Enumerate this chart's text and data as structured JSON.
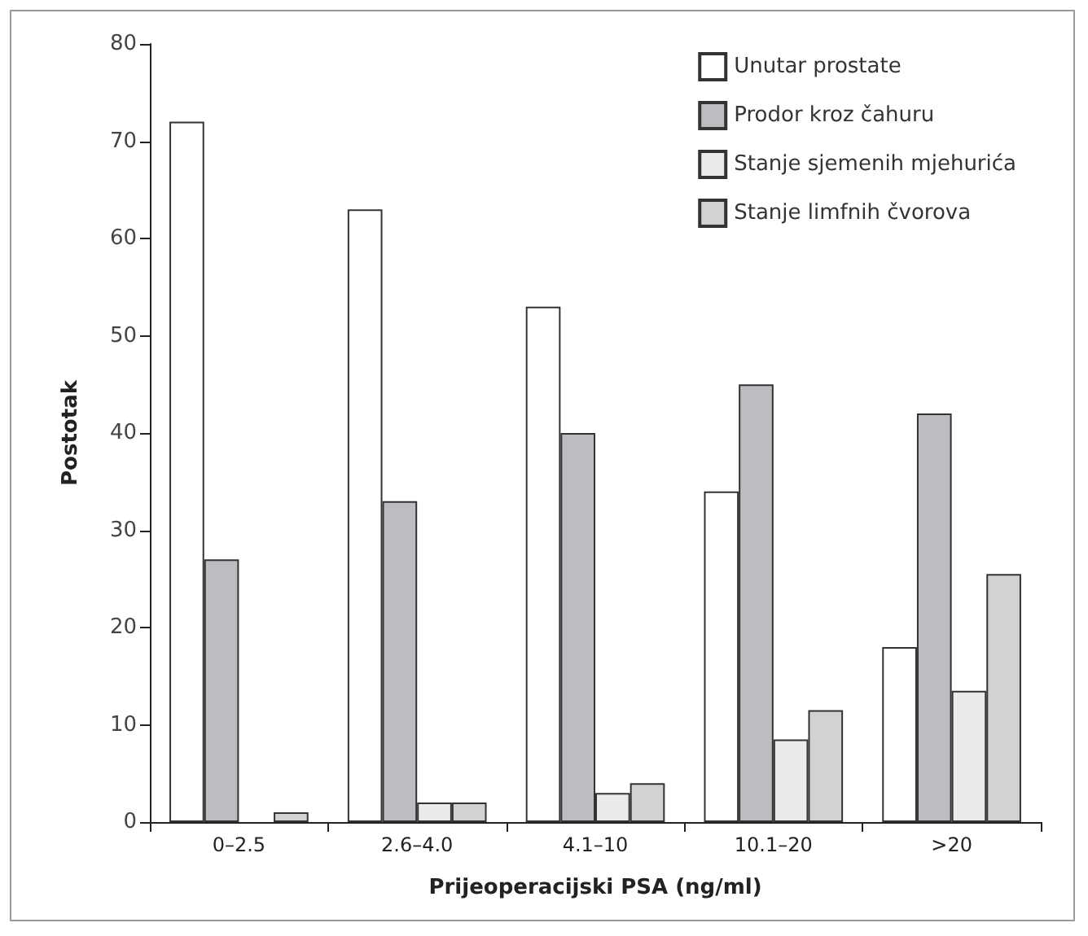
{
  "chart_data": {
    "type": "bar",
    "xlabel": "Prijeoperacijski PSA (ng/ml)",
    "ylabel": "Postotak",
    "categories": [
      "0–2.5",
      "2.6–4.0",
      "4.1–10",
      "10.1–20",
      ">20"
    ],
    "series": [
      {
        "name": "Unutar prostate",
        "color": "#ffffff",
        "values": [
          72,
          63,
          53,
          34,
          18
        ]
      },
      {
        "name": "Prodor kroz čahuru",
        "color": "#bcbdc0",
        "values": [
          27,
          33,
          40,
          45,
          42
        ]
      },
      {
        "name": "Stanje sjemenih mjehurića",
        "color": "#ebebeb",
        "values": [
          0,
          2,
          3,
          8.5,
          13.5
        ]
      },
      {
        "name": "Stanje limfnih čvorova",
        "color": "#d1d2d4",
        "values": [
          1,
          2,
          4,
          11.5,
          25.5
        ]
      }
    ],
    "ylim": [
      0,
      80
    ],
    "yticks": [
      0,
      10,
      20,
      30,
      40,
      50,
      60,
      70,
      80
    ],
    "grid": false,
    "legend": "top right"
  }
}
